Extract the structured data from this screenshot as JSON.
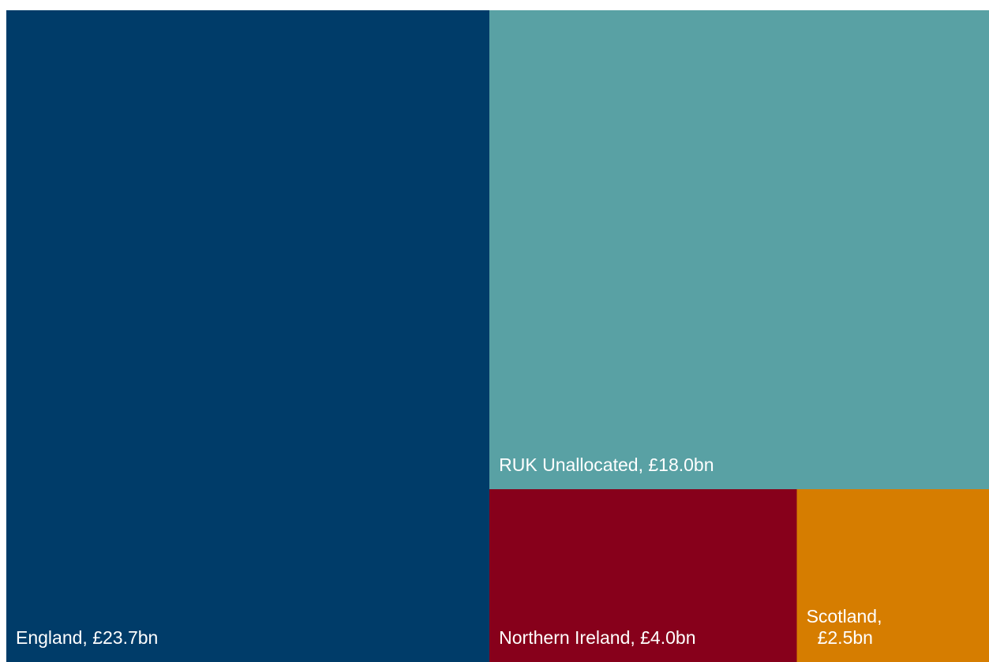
{
  "chart_data": {
    "type": "treemap",
    "unit": "£bn",
    "items": [
      {
        "name": "England",
        "value": 23.7,
        "label_lines": [
          "England, £23.7bn"
        ],
        "color": "#003C69"
      },
      {
        "name": "RUK Unallocated",
        "value": 18.0,
        "label_lines": [
          "RUK Unallocated, £18.0bn"
        ],
        "color": "#59A1A4"
      },
      {
        "name": "Northern Ireland",
        "value": 4.0,
        "label_lines": [
          "Northern Ireland, £4.0bn"
        ],
        "color": "#87001B"
      },
      {
        "name": "Scotland",
        "value": 2.5,
        "label_lines": [
          "Scotland,",
          "£2.5bn"
        ],
        "color": "#D67D00"
      }
    ]
  }
}
